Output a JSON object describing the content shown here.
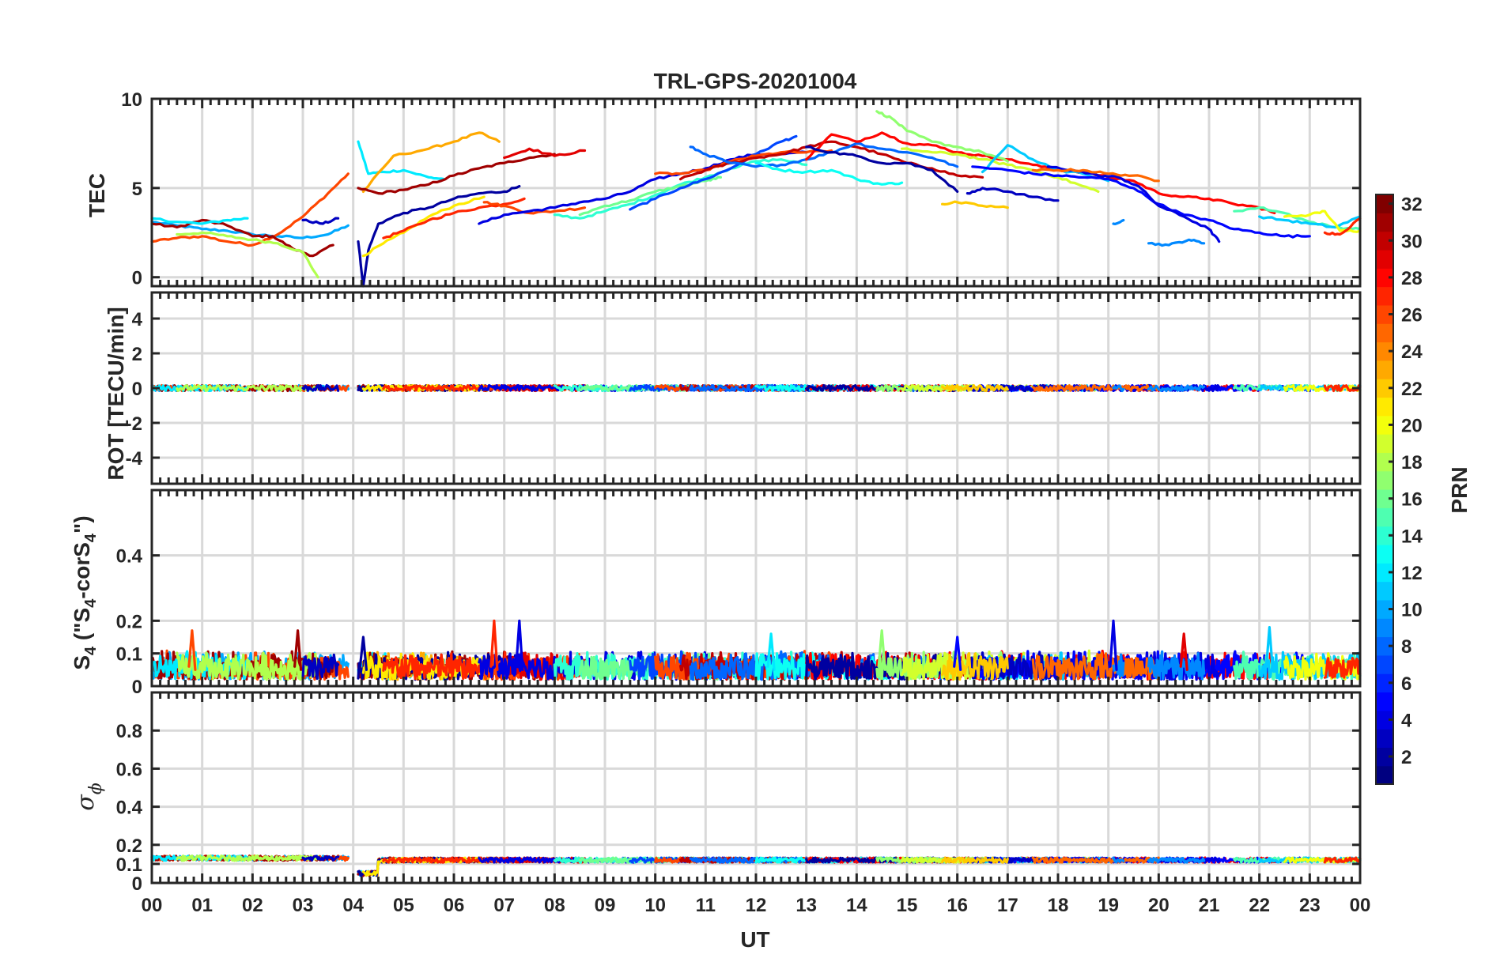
{
  "chart_data": [
    {
      "type": "line",
      "panel": "tec",
      "title": "TRL-GPS-20201004",
      "ylabel": "TEC",
      "ylim": [
        -0.5,
        10
      ],
      "yticks": [
        0,
        5,
        10
      ],
      "xlim": [
        0,
        24
      ],
      "series": [
        {
          "prn": 10,
          "x": [
            0.0,
            0.5,
            1.0,
            1.5,
            2.0,
            2.5,
            3.0,
            3.5,
            3.9
          ],
          "y": [
            3.1,
            2.9,
            2.7,
            2.6,
            2.4,
            2.3,
            2.2,
            2.4,
            2.9
          ]
        },
        {
          "prn": 26,
          "x": [
            0.0,
            0.5,
            1.0,
            1.5,
            2.0,
            2.5,
            3.0,
            3.5,
            3.9
          ],
          "y": [
            2.0,
            2.2,
            2.3,
            2.0,
            1.8,
            2.4,
            3.4,
            4.7,
            5.8
          ]
        },
        {
          "prn": 31,
          "x": [
            0.0,
            0.5,
            1.0,
            1.5,
            2.0,
            2.4,
            2.8,
            3.2,
            3.6
          ],
          "y": [
            3.0,
            2.8,
            3.2,
            2.9,
            2.3,
            2.3,
            1.6,
            1.2,
            1.8
          ]
        },
        {
          "prn": 12,
          "x": [
            0.0,
            0.5,
            1.0,
            1.5,
            1.9
          ],
          "y": [
            3.3,
            3.1,
            3.0,
            3.2,
            3.3
          ]
        },
        {
          "prn": 18,
          "x": [
            0.5,
            1.0,
            1.5,
            2.0,
            2.5,
            3.0,
            3.3
          ],
          "y": [
            2.4,
            2.5,
            2.3,
            2.1,
            1.9,
            1.4,
            0.0
          ]
        },
        {
          "prn": 3,
          "x": [
            3.0,
            3.4,
            3.7
          ],
          "y": [
            3.2,
            3.0,
            3.3
          ]
        },
        {
          "prn": 12,
          "x": [
            4.1,
            4.3,
            4.6,
            5.0,
            5.5,
            5.8
          ],
          "y": [
            7.6,
            5.8,
            5.9,
            6.0,
            5.6,
            5.5
          ]
        },
        {
          "prn": 23,
          "x": [
            4.2,
            4.8,
            5.5,
            6.0,
            6.5,
            6.9
          ],
          "y": [
            4.8,
            6.8,
            7.2,
            7.6,
            8.1,
            7.6
          ]
        },
        {
          "prn": 31,
          "x": [
            4.1,
            4.5,
            5.0,
            5.5,
            6.0,
            6.5,
            7.0,
            7.5,
            8.0
          ],
          "y": [
            5.0,
            4.7,
            4.9,
            5.2,
            5.7,
            6.1,
            6.4,
            6.7,
            6.9
          ]
        },
        {
          "prn": 2,
          "x": [
            4.1,
            4.2,
            4.3,
            4.5,
            5.0,
            5.5,
            6.0,
            6.5,
            7.0,
            7.3
          ],
          "y": [
            2.0,
            -0.5,
            1.5,
            3.0,
            3.6,
            3.9,
            4.4,
            4.7,
            4.8,
            5.1
          ]
        },
        {
          "prn": 21,
          "x": [
            4.2,
            4.6,
            5.0,
            5.5,
            6.0,
            6.6
          ],
          "y": [
            1.2,
            1.9,
            2.5,
            3.4,
            4.0,
            4.5
          ]
        },
        {
          "prn": 27,
          "x": [
            4.6,
            5.0,
            5.5,
            6.0,
            6.5,
            7.0,
            7.4
          ],
          "y": [
            2.2,
            2.6,
            3.2,
            3.6,
            3.9,
            4.1,
            4.4
          ]
        },
        {
          "prn": 26,
          "x": [
            6.6,
            7.0,
            7.5,
            8.0,
            8.6
          ],
          "y": [
            4.2,
            4.0,
            3.6,
            3.7,
            3.9
          ]
        },
        {
          "prn": 29,
          "x": [
            7.0,
            7.5,
            8.0,
            8.6
          ],
          "y": [
            6.7,
            7.2,
            6.8,
            7.1
          ]
        },
        {
          "prn": 4,
          "x": [
            6.5,
            7.0,
            7.5,
            8.0,
            8.5,
            9.0,
            9.5,
            10.0,
            10.5,
            11.0,
            11.5,
            12.0,
            12.5,
            13.0
          ],
          "y": [
            3.0,
            3.5,
            3.7,
            3.9,
            4.2,
            4.4,
            4.8,
            5.5,
            5.8,
            6.1,
            6.6,
            6.9,
            6.9,
            7.0
          ]
        },
        {
          "prn": 14,
          "x": [
            8.0,
            8.5,
            9.0,
            9.5,
            10.0,
            10.5,
            11.0,
            11.5,
            12.0,
            12.5,
            13.0
          ],
          "y": [
            3.5,
            3.3,
            3.7,
            4.1,
            4.6,
            5.2,
            5.6,
            6.1,
            6.5,
            6.6,
            6.3
          ]
        },
        {
          "prn": 16,
          "x": [
            8.5,
            9.0,
            9.5,
            10.0,
            10.5,
            11.0,
            11.3
          ],
          "y": [
            3.5,
            4.0,
            4.3,
            4.8,
            5.1,
            5.4,
            5.6
          ]
        },
        {
          "prn": 7,
          "x": [
            9.5,
            10.0,
            10.5,
            11.0,
            11.5,
            12.0,
            12.5,
            12.8
          ],
          "y": [
            3.8,
            4.4,
            5.0,
            5.5,
            6.1,
            6.9,
            7.6,
            7.9
          ]
        },
        {
          "prn": 26,
          "x": [
            10.0,
            10.5,
            11.0,
            11.5,
            12.0,
            12.5,
            13.0,
            13.5
          ],
          "y": [
            5.8,
            5.8,
            6.0,
            6.5,
            6.8,
            7.0,
            7.0,
            7.1
          ]
        },
        {
          "prn": 30,
          "x": [
            10.5,
            11.0,
            11.5,
            12.0,
            12.5,
            13.0,
            13.5,
            14.0,
            14.5,
            15.0,
            15.5,
            16.0,
            16.5
          ],
          "y": [
            5.5,
            6.0,
            6.4,
            6.7,
            6.9,
            7.3,
            7.6,
            7.3,
            6.9,
            6.4,
            6.1,
            5.7,
            5.6
          ]
        },
        {
          "prn": 8,
          "x": [
            10.7,
            11.0,
            11.5,
            12.0,
            12.5,
            13.0,
            13.5,
            14.0,
            14.5,
            15.0,
            15.5,
            16.0
          ],
          "y": [
            7.3,
            6.9,
            6.4,
            6.2,
            6.3,
            6.6,
            7.0,
            7.5,
            7.2,
            7.0,
            6.7,
            6.2
          ]
        },
        {
          "prn": 13,
          "x": [
            12.0,
            12.5,
            13.0,
            13.5,
            14.0,
            14.5,
            14.9
          ],
          "y": [
            6.4,
            6.0,
            5.9,
            6.0,
            5.5,
            5.2,
            5.3
          ]
        },
        {
          "prn": 28,
          "x": [
            13.0,
            13.5,
            14.0,
            14.5,
            15.0,
            15.5,
            16.0,
            16.5,
            17.0,
            17.5,
            18.0,
            18.5,
            19.0,
            19.5,
            20.0,
            20.5,
            21.0,
            21.5,
            22.0,
            22.3
          ],
          "y": [
            6.6,
            8.0,
            7.6,
            8.1,
            7.5,
            7.4,
            7.0,
            6.8,
            6.6,
            6.3,
            6.0,
            5.9,
            5.6,
            5.4,
            4.7,
            4.5,
            4.4,
            4.1,
            3.9,
            3.6
          ]
        },
        {
          "prn": 2,
          "x": [
            13.0,
            13.5,
            14.0,
            14.5,
            15.0,
            15.5,
            16.0
          ],
          "y": [
            7.3,
            7.0,
            6.8,
            6.4,
            6.4,
            6.0,
            4.8
          ]
        },
        {
          "prn": 17,
          "x": [
            14.4,
            14.7,
            15.0,
            15.5,
            16.0,
            16.5,
            17.0
          ],
          "y": [
            9.3,
            8.9,
            8.2,
            7.6,
            7.3,
            7.0,
            6.5
          ]
        },
        {
          "prn": 19,
          "x": [
            14.9,
            15.5,
            16.0,
            16.5,
            17.0,
            17.5,
            18.0,
            18.5,
            18.8
          ],
          "y": [
            7.2,
            7.0,
            6.9,
            6.6,
            6.3,
            6.0,
            5.6,
            5.1,
            4.8
          ]
        },
        {
          "prn": 11,
          "x": [
            16.5,
            17.0,
            17.5,
            18.0,
            18.5,
            19.0
          ],
          "y": [
            5.9,
            7.4,
            6.6,
            6.0,
            5.8,
            5.4
          ]
        },
        {
          "prn": 5,
          "x": [
            16.3,
            17.0,
            17.5,
            18.0,
            18.5,
            19.0,
            19.5,
            20.0,
            20.5,
            21.0,
            21.5,
            22.0,
            22.5,
            23.0
          ],
          "y": [
            6.2,
            6.0,
            5.8,
            5.7,
            5.6,
            5.5,
            5.0,
            4.1,
            3.5,
            3.2,
            2.7,
            2.5,
            2.3,
            2.3
          ]
        },
        {
          "prn": 3,
          "x": [
            16.2,
            16.5,
            17.0,
            17.5,
            18.0
          ],
          "y": [
            4.7,
            5.0,
            4.8,
            4.5,
            4.3
          ]
        },
        {
          "prn": 22,
          "x": [
            15.7,
            16.0,
            16.5,
            17.0
          ],
          "y": [
            4.1,
            4.2,
            4.0,
            3.9
          ]
        },
        {
          "prn": 4,
          "x": [
            17.8,
            18.3,
            18.8,
            19.2,
            19.6,
            20.0,
            20.5,
            21.0,
            21.2
          ],
          "y": [
            6.2,
            6.0,
            5.7,
            5.6,
            5.1,
            4.0,
            3.4,
            2.7,
            2.0
          ]
        },
        {
          "prn": 25,
          "x": [
            17.5,
            18.0,
            18.5,
            19.0,
            19.5,
            20.0
          ],
          "y": [
            6.0,
            6.0,
            6.0,
            5.8,
            5.7,
            5.4
          ]
        },
        {
          "prn": 9,
          "x": [
            19.1,
            19.3
          ],
          "y": [
            3.0,
            3.2
          ]
        },
        {
          "prn": 9,
          "x": [
            19.8,
            20.2,
            20.6,
            20.9
          ],
          "y": [
            1.9,
            1.8,
            2.1,
            1.9
          ]
        },
        {
          "prn": 15,
          "x": [
            21.5,
            22.0,
            22.5,
            23.0,
            23.5,
            24.0
          ],
          "y": [
            3.7,
            3.9,
            3.6,
            3.1,
            2.8,
            2.7
          ]
        },
        {
          "prn": 11,
          "x": [
            22.0,
            22.5,
            23.0,
            23.5,
            24.0
          ],
          "y": [
            3.4,
            3.2,
            3.0,
            2.8,
            3.4
          ]
        },
        {
          "prn": 20,
          "x": [
            22.5,
            23.0,
            23.3,
            23.6,
            24.0
          ],
          "y": [
            3.4,
            3.5,
            3.7,
            2.6,
            2.6
          ]
        },
        {
          "prn": 27,
          "x": [
            23.3,
            23.6,
            24.0
          ],
          "y": [
            2.5,
            2.4,
            3.3
          ]
        }
      ]
    },
    {
      "type": "line",
      "panel": "rot",
      "ylabel": "ROT [TECU/min]",
      "ylim": [
        -5.5,
        5.5
      ],
      "yticks": [
        -4,
        -2,
        0,
        2,
        4
      ],
      "xlim": [
        0,
        24
      ],
      "description_values": "all PRN ROT traces fluctuate within about ±0.2 TECU/min around 0"
    },
    {
      "type": "line",
      "panel": "s4",
      "ylabel_main": "S",
      "ylabel_sub": "4",
      "ylabel_mid": " (\"S",
      "ylabel_mid2": "-corS",
      "ylabel_end": "\")",
      "ylim": [
        0,
        0.6
      ],
      "yticks": [
        0,
        0.1,
        0.2,
        0.4
      ],
      "xlim": [
        0,
        24
      ],
      "typical_range": [
        0.02,
        0.11
      ],
      "peaks": [
        {
          "x": 0.8,
          "y": 0.17,
          "prn": 26
        },
        {
          "x": 2.9,
          "y": 0.17,
          "prn": 31
        },
        {
          "x": 4.2,
          "y": 0.15,
          "prn": 2
        },
        {
          "x": 6.8,
          "y": 0.2,
          "prn": 27
        },
        {
          "x": 7.3,
          "y": 0.2,
          "prn": 4
        },
        {
          "x": 12.3,
          "y": 0.16,
          "prn": 12
        },
        {
          "x": 14.5,
          "y": 0.17,
          "prn": 17
        },
        {
          "x": 16.0,
          "y": 0.15,
          "prn": 5
        },
        {
          "x": 19.1,
          "y": 0.2,
          "prn": 4
        },
        {
          "x": 20.5,
          "y": 0.16,
          "prn": 29
        },
        {
          "x": 22.2,
          "y": 0.18,
          "prn": 11
        }
      ]
    },
    {
      "type": "line",
      "panel": "sigma_phi",
      "ylabel": "σ",
      "ylabel_sub": "ϕ",
      "ylim": [
        0,
        1
      ],
      "yticks": [
        0,
        0.1,
        0.2,
        0.4,
        0.6,
        0.8
      ],
      "xlim": [
        0,
        24
      ],
      "typical_value": 0.12,
      "segments": [
        {
          "x0": 0.0,
          "x1": 3.9,
          "level": 0.13
        },
        {
          "x0": 4.0,
          "x1": 4.5,
          "level": 0.05
        },
        {
          "x0": 4.5,
          "x1": 24.0,
          "level": 0.12
        }
      ]
    }
  ],
  "x_axis": {
    "label": "UT",
    "ticks": [
      "00",
      "01",
      "02",
      "03",
      "04",
      "05",
      "06",
      "07",
      "08",
      "09",
      "10",
      "11",
      "12",
      "13",
      "14",
      "15",
      "16",
      "17",
      "18",
      "19",
      "20",
      "21",
      "22",
      "23",
      "00"
    ]
  },
  "colorbar": {
    "label": "PRN",
    "range": [
      1,
      32
    ],
    "ticks": [
      "2",
      "4",
      "6",
      "8",
      "10",
      "12",
      "14",
      "16",
      "18",
      "20",
      "22",
      "24",
      "26",
      "28",
      "30",
      "32"
    ],
    "colormap": "jet"
  }
}
